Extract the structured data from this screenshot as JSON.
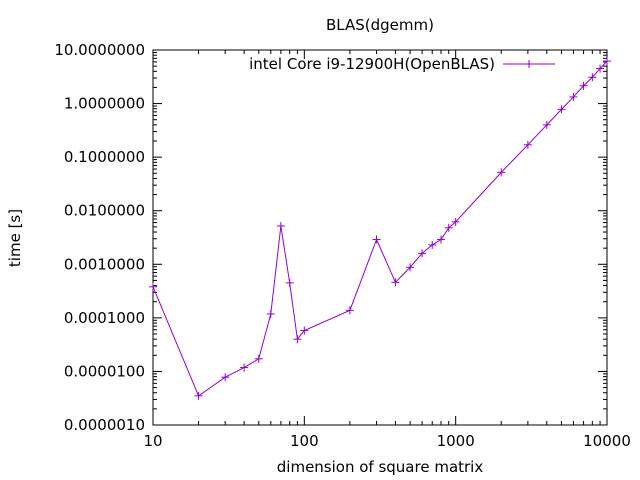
{
  "chart_data": {
    "type": "line",
    "title": "BLAS(dgemm)",
    "xlabel": "dimension of square matrix",
    "ylabel": "time [s]",
    "x_scale": "log",
    "y_scale": "log",
    "xlim": [
      10,
      10000
    ],
    "ylim": [
      1e-06,
      10
    ],
    "x_ticks": [
      {
        "value": 10,
        "label": "10"
      },
      {
        "value": 100,
        "label": "100"
      },
      {
        "value": 1000,
        "label": "1000"
      },
      {
        "value": 10000,
        "label": "10000"
      }
    ],
    "y_ticks": [
      {
        "value": 1e-06,
        "label": "0.0000010"
      },
      {
        "value": 1e-05,
        "label": "0.0000100"
      },
      {
        "value": 0.0001,
        "label": "0.0001000"
      },
      {
        "value": 0.001,
        "label": "0.0010000"
      },
      {
        "value": 0.01,
        "label": "0.0100000"
      },
      {
        "value": 0.1,
        "label": "0.1000000"
      },
      {
        "value": 1,
        "label": "1.0000000"
      },
      {
        "value": 10,
        "label": "10.0000000"
      }
    ],
    "legend_position": "top-right",
    "grid": false,
    "series": [
      {
        "name": "intel Core i9-12900H(OpenBLAS)",
        "color": "#9400d3",
        "marker": "plus",
        "x": [
          10,
          20,
          30,
          40,
          50,
          60,
          70,
          80,
          90,
          100,
          200,
          300,
          400,
          500,
          600,
          700,
          800,
          900,
          1000,
          2000,
          3000,
          4000,
          5000,
          6000,
          7000,
          8000,
          9000,
          10000
        ],
        "y": [
          0.00038,
          3.5e-06,
          7.8e-06,
          1.18e-05,
          1.72e-05,
          0.000118,
          0.0052,
          0.00045,
          4e-05,
          5.8e-05,
          0.000138,
          0.0029,
          0.00046,
          0.00088,
          0.0016,
          0.0023,
          0.0029,
          0.0048,
          0.0062,
          0.052,
          0.17,
          0.4,
          0.78,
          1.33,
          2.15,
          3.1,
          4.5,
          6.2
        ]
      }
    ]
  }
}
